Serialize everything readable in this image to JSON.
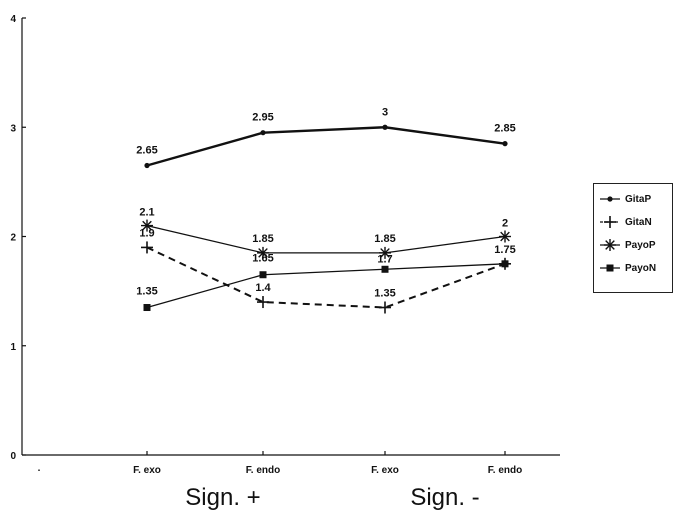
{
  "chart_data": {
    "type": "line",
    "categories": [
      "F. exo",
      "F. endo",
      "F. exo",
      "F. endo"
    ],
    "group_labels": [
      "Sign. +",
      "Sign. -"
    ],
    "ylim": [
      0,
      4
    ],
    "yticks": [
      "0",
      "1",
      "2",
      "3",
      "4"
    ],
    "x_origin_label": ".",
    "grid": false,
    "legend_position": "right",
    "series": [
      {
        "name": "GitaP",
        "values": [
          2.65,
          2.95,
          3,
          2.85
        ],
        "labels": [
          "2.65",
          "2.95",
          "3",
          "2.85"
        ],
        "marker": "dot",
        "dash": "solid",
        "width": 2.4
      },
      {
        "name": "GitaN",
        "values": [
          1.9,
          1.4,
          1.35,
          1.75
        ],
        "labels": [
          "1.9",
          "1.4",
          "1.35",
          ""
        ],
        "marker": "plus",
        "dash": "dashed",
        "width": 2
      },
      {
        "name": "PayoP",
        "values": [
          2.1,
          1.85,
          1.85,
          2
        ],
        "labels": [
          "2.1",
          "1.85",
          "1.85",
          "2"
        ],
        "marker": "asterisk",
        "dash": "solid",
        "width": 1.3
      },
      {
        "name": "PayoN",
        "values": [
          1.35,
          1.65,
          1.7,
          1.75
        ],
        "labels": [
          "1.35",
          "1.65",
          "1.7",
          "1.75"
        ],
        "marker": "square",
        "dash": "solid",
        "width": 1.3
      }
    ],
    "colors": {
      "ink": "#111111",
      "background": "#ffffff"
    }
  }
}
